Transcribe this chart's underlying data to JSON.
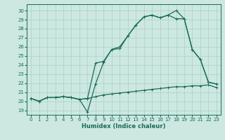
{
  "xlabel": "Humidex (Indice chaleur)",
  "bg_color": "#cce8e0",
  "grid_color": "#aacfc8",
  "line_color": "#1a6b5a",
  "xlim": [
    -0.5,
    23.5
  ],
  "ylim": [
    18.5,
    30.7
  ],
  "yticks": [
    19,
    20,
    21,
    22,
    23,
    24,
    25,
    26,
    27,
    28,
    29,
    30
  ],
  "xticks": [
    0,
    1,
    2,
    3,
    4,
    5,
    6,
    7,
    8,
    9,
    10,
    11,
    12,
    13,
    14,
    15,
    16,
    17,
    18,
    19,
    20,
    21,
    22,
    23
  ],
  "line1_y": [
    20.3,
    20.0,
    20.4,
    20.4,
    20.5,
    20.4,
    20.2,
    20.3,
    20.5,
    20.7,
    20.8,
    20.9,
    21.0,
    21.1,
    21.2,
    21.3,
    21.4,
    21.5,
    21.6,
    21.6,
    21.7,
    21.7,
    21.8,
    21.5
  ],
  "line2_y": [
    20.3,
    20.0,
    20.4,
    20.4,
    20.5,
    20.4,
    20.2,
    18.8,
    21.9,
    24.3,
    25.7,
    25.8,
    27.2,
    28.4,
    29.3,
    29.5,
    29.2,
    29.5,
    30.0,
    29.1,
    25.7,
    24.6,
    22.1,
    21.9
  ],
  "line3_y": [
    20.3,
    20.0,
    20.4,
    20.4,
    20.5,
    20.4,
    20.2,
    20.3,
    24.2,
    24.4,
    25.7,
    26.0,
    27.2,
    28.4,
    29.3,
    29.5,
    29.2,
    29.5,
    29.1,
    29.1,
    25.7,
    24.6,
    22.1,
    21.9
  ],
  "marker_size": 2.5,
  "line_width": 0.9,
  "tick_fontsize": 5.0,
  "xlabel_fontsize": 6.0
}
